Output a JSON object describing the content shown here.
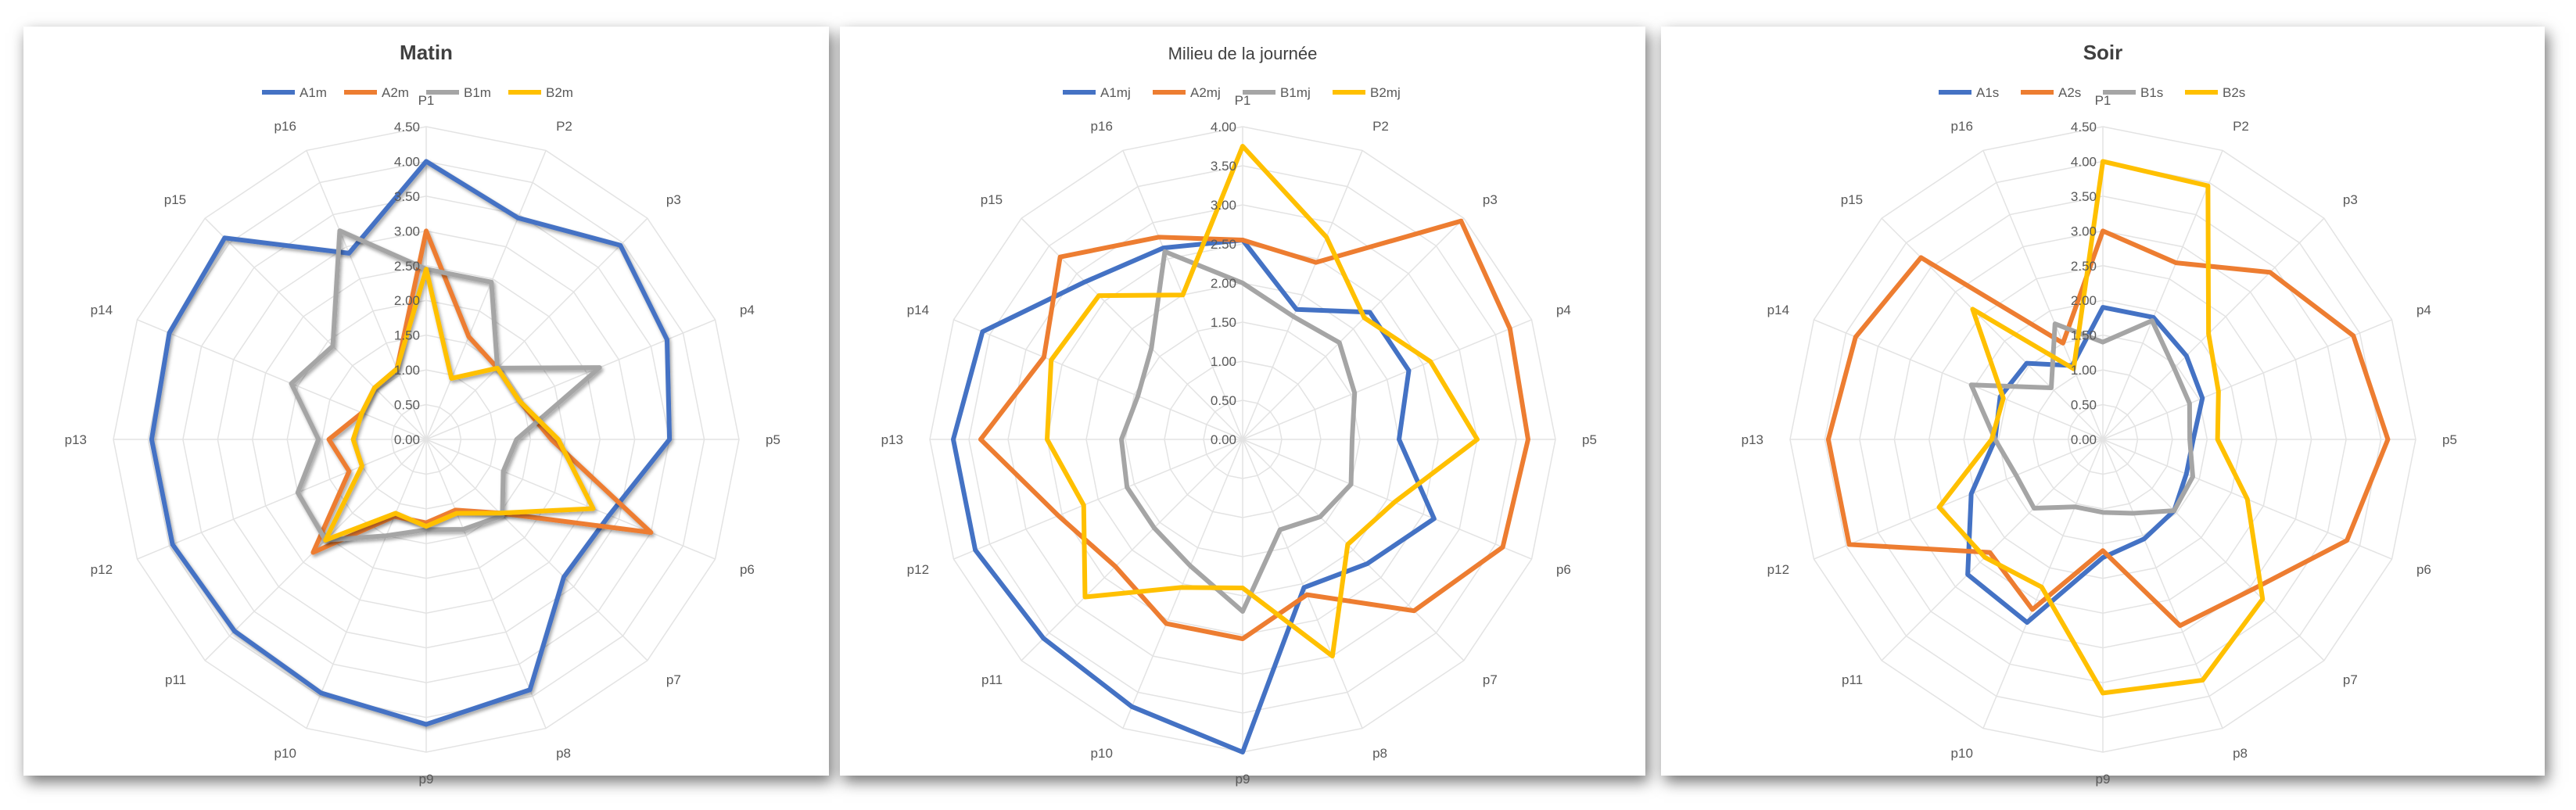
{
  "page": {
    "background": "#ffffff"
  },
  "chart_data": [
    {
      "type": "radar",
      "title": "Matin",
      "title_bold": true,
      "legend_position": "top",
      "categories": [
        "P1",
        "P2",
        "p3",
        "p4",
        "p5",
        "p6",
        "p7",
        "p8",
        "p9",
        "p10",
        "p11",
        "p12",
        "p13",
        "p14",
        "p15",
        "p16"
      ],
      "ticks": [
        "0.00",
        "0.50",
        "1.00",
        "1.50",
        "2.00",
        "2.50",
        "3.00",
        "3.50",
        "4.00",
        "4.50"
      ],
      "rlim": [
        0,
        4.5
      ],
      "grid": true,
      "series": [
        {
          "name": "A1m",
          "color": "#4472c4",
          "values": [
            4.0,
            3.45,
            3.95,
            3.75,
            3.5,
            2.85,
            2.8,
            3.9,
            4.1,
            3.95,
            3.9,
            3.95,
            3.95,
            4.0,
            4.1,
            2.9
          ]
        },
        {
          "name": "A2m",
          "color": "#ed7d31",
          "values": [
            3.0,
            1.6,
            1.45,
            1.45,
            1.8,
            3.5,
            1.5,
            1.1,
            1.2,
            1.2,
            2.3,
            1.2,
            1.4,
            1.0,
            1.05,
            1.1
          ]
        },
        {
          "name": "B1m",
          "color": "#a5a5a5",
          "values": [
            2.45,
            2.45,
            1.45,
            2.7,
            1.3,
            1.2,
            1.55,
            1.4,
            1.3,
            1.5,
            2.05,
            2.0,
            1.55,
            2.1,
            1.9,
            3.25
          ]
        },
        {
          "name": "B2m",
          "color": "#ffc000",
          "values": [
            2.45,
            0.95,
            1.45,
            1.45,
            1.9,
            2.6,
            1.5,
            1.15,
            1.25,
            1.15,
            2.05,
            1.0,
            1.05,
            1.0,
            1.05,
            1.1
          ]
        }
      ]
    },
    {
      "type": "radar",
      "title": "Milieu de la journée",
      "title_bold": false,
      "legend_position": "top",
      "categories": [
        "P1",
        "P2",
        "p3",
        "p4",
        "p5",
        "p6",
        "p7",
        "p8",
        "p9",
        "p10",
        "p11",
        "p12",
        "p13",
        "p14",
        "p15",
        "p16"
      ],
      "ticks": [
        "0.00",
        "0.50",
        "1.00",
        "1.50",
        "2.00",
        "2.50",
        "3.00",
        "3.50",
        "4.00"
      ],
      "rlim": [
        0,
        4.0
      ],
      "grid": true,
      "series": [
        {
          "name": "A1mj",
          "color": "#4472c4",
          "values": [
            2.55,
            1.8,
            2.3,
            2.3,
            2.0,
            2.65,
            2.25,
            2.05,
            4.0,
            3.7,
            3.6,
            3.7,
            3.7,
            3.6,
            2.85,
            2.65
          ]
        },
        {
          "name": "A2mj",
          "color": "#ed7d31",
          "values": [
            2.55,
            2.45,
            3.95,
            3.7,
            3.65,
            3.6,
            3.1,
            2.15,
            2.55,
            2.55,
            2.3,
            2.55,
            3.35,
            2.75,
            3.3,
            2.8
          ]
        },
        {
          "name": "B1mj",
          "color": "#a5a5a5",
          "values": [
            2.0,
            1.7,
            1.75,
            1.55,
            1.4,
            1.5,
            1.4,
            1.25,
            2.2,
            1.75,
            1.6,
            1.6,
            1.55,
            1.45,
            1.65,
            2.6
          ]
        },
        {
          "name": "B2mj",
          "color": "#ffc000",
          "values": [
            3.75,
            2.8,
            2.2,
            2.6,
            3.0,
            2.1,
            1.9,
            3.0,
            1.9,
            2.05,
            2.85,
            2.2,
            2.5,
            2.65,
            2.6,
            2.0
          ]
        }
      ]
    },
    {
      "type": "radar",
      "title": "Soir",
      "title_bold": true,
      "legend_position": "top",
      "categories": [
        "P1",
        "P2",
        "p3",
        "p4",
        "p5",
        "p6",
        "p7",
        "p8",
        "p9",
        "p10",
        "p11",
        "p12",
        "p13",
        "p14",
        "p15",
        "p16"
      ],
      "ticks": [
        "0.00",
        "0.50",
        "1.00",
        "1.50",
        "2.00",
        "2.50",
        "3.00",
        "3.50",
        "4.00",
        "4.50"
      ],
      "rlim": [
        0,
        4.5
      ],
      "grid": true,
      "series": [
        {
          "name": "A1s",
          "color": "#4472c4",
          "values": [
            1.9,
            1.9,
            1.7,
            1.55,
            1.3,
            1.3,
            1.45,
            1.55,
            1.7,
            2.85,
            2.75,
            2.05,
            1.55,
            1.6,
            1.55,
            1.15
          ]
        },
        {
          "name": "A2s",
          "color": "#ed7d31",
          "values": [
            3.0,
            2.75,
            3.4,
            3.9,
            4.1,
            3.8,
            3.05,
            2.9,
            1.6,
            2.65,
            2.3,
            3.95,
            3.95,
            3.85,
            3.7,
            1.5
          ]
        },
        {
          "name": "B1s",
          "color": "#a5a5a5",
          "values": [
            1.4,
            1.85,
            1.45,
            1.35,
            1.25,
            1.4,
            1.45,
            1.15,
            1.05,
            1.05,
            1.4,
            1.35,
            1.55,
            2.05,
            1.05,
            1.8
          ]
        },
        {
          "name": "B2s",
          "color": "#ffc000",
          "values": [
            4.0,
            3.95,
            2.15,
            1.8,
            1.65,
            2.25,
            3.25,
            3.75,
            3.65,
            2.3,
            2.4,
            2.55,
            1.6,
            1.55,
            2.65,
            1.1
          ]
        }
      ]
    }
  ]
}
